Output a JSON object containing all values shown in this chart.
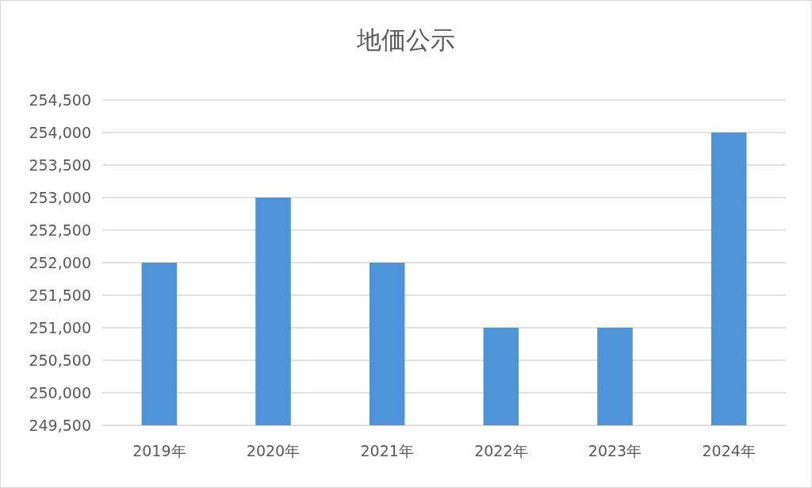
{
  "chart_data": {
    "type": "bar",
    "title": "地価公示",
    "categories": [
      "2019年",
      "2020年",
      "2021年",
      "2022年",
      "2023年",
      "2024年"
    ],
    "values": [
      252000,
      253000,
      252000,
      251000,
      251000,
      254000
    ],
    "color": "#4f94d8",
    "ylim": [
      249500,
      254500
    ],
    "yticks": [
      {
        "value": 249500,
        "label": "249,500"
      },
      {
        "value": 250000,
        "label": "250,000"
      },
      {
        "value": 250500,
        "label": "250,500"
      },
      {
        "value": 251000,
        "label": "251,000"
      },
      {
        "value": 251500,
        "label": "251,500"
      },
      {
        "value": 252000,
        "label": "252,000"
      },
      {
        "value": 252500,
        "label": "252,500"
      },
      {
        "value": 253000,
        "label": "253,000"
      },
      {
        "value": 253500,
        "label": "253,500"
      },
      {
        "value": 254000,
        "label": "254,000"
      },
      {
        "value": 254500,
        "label": "254,500"
      }
    ],
    "grid": "y"
  }
}
